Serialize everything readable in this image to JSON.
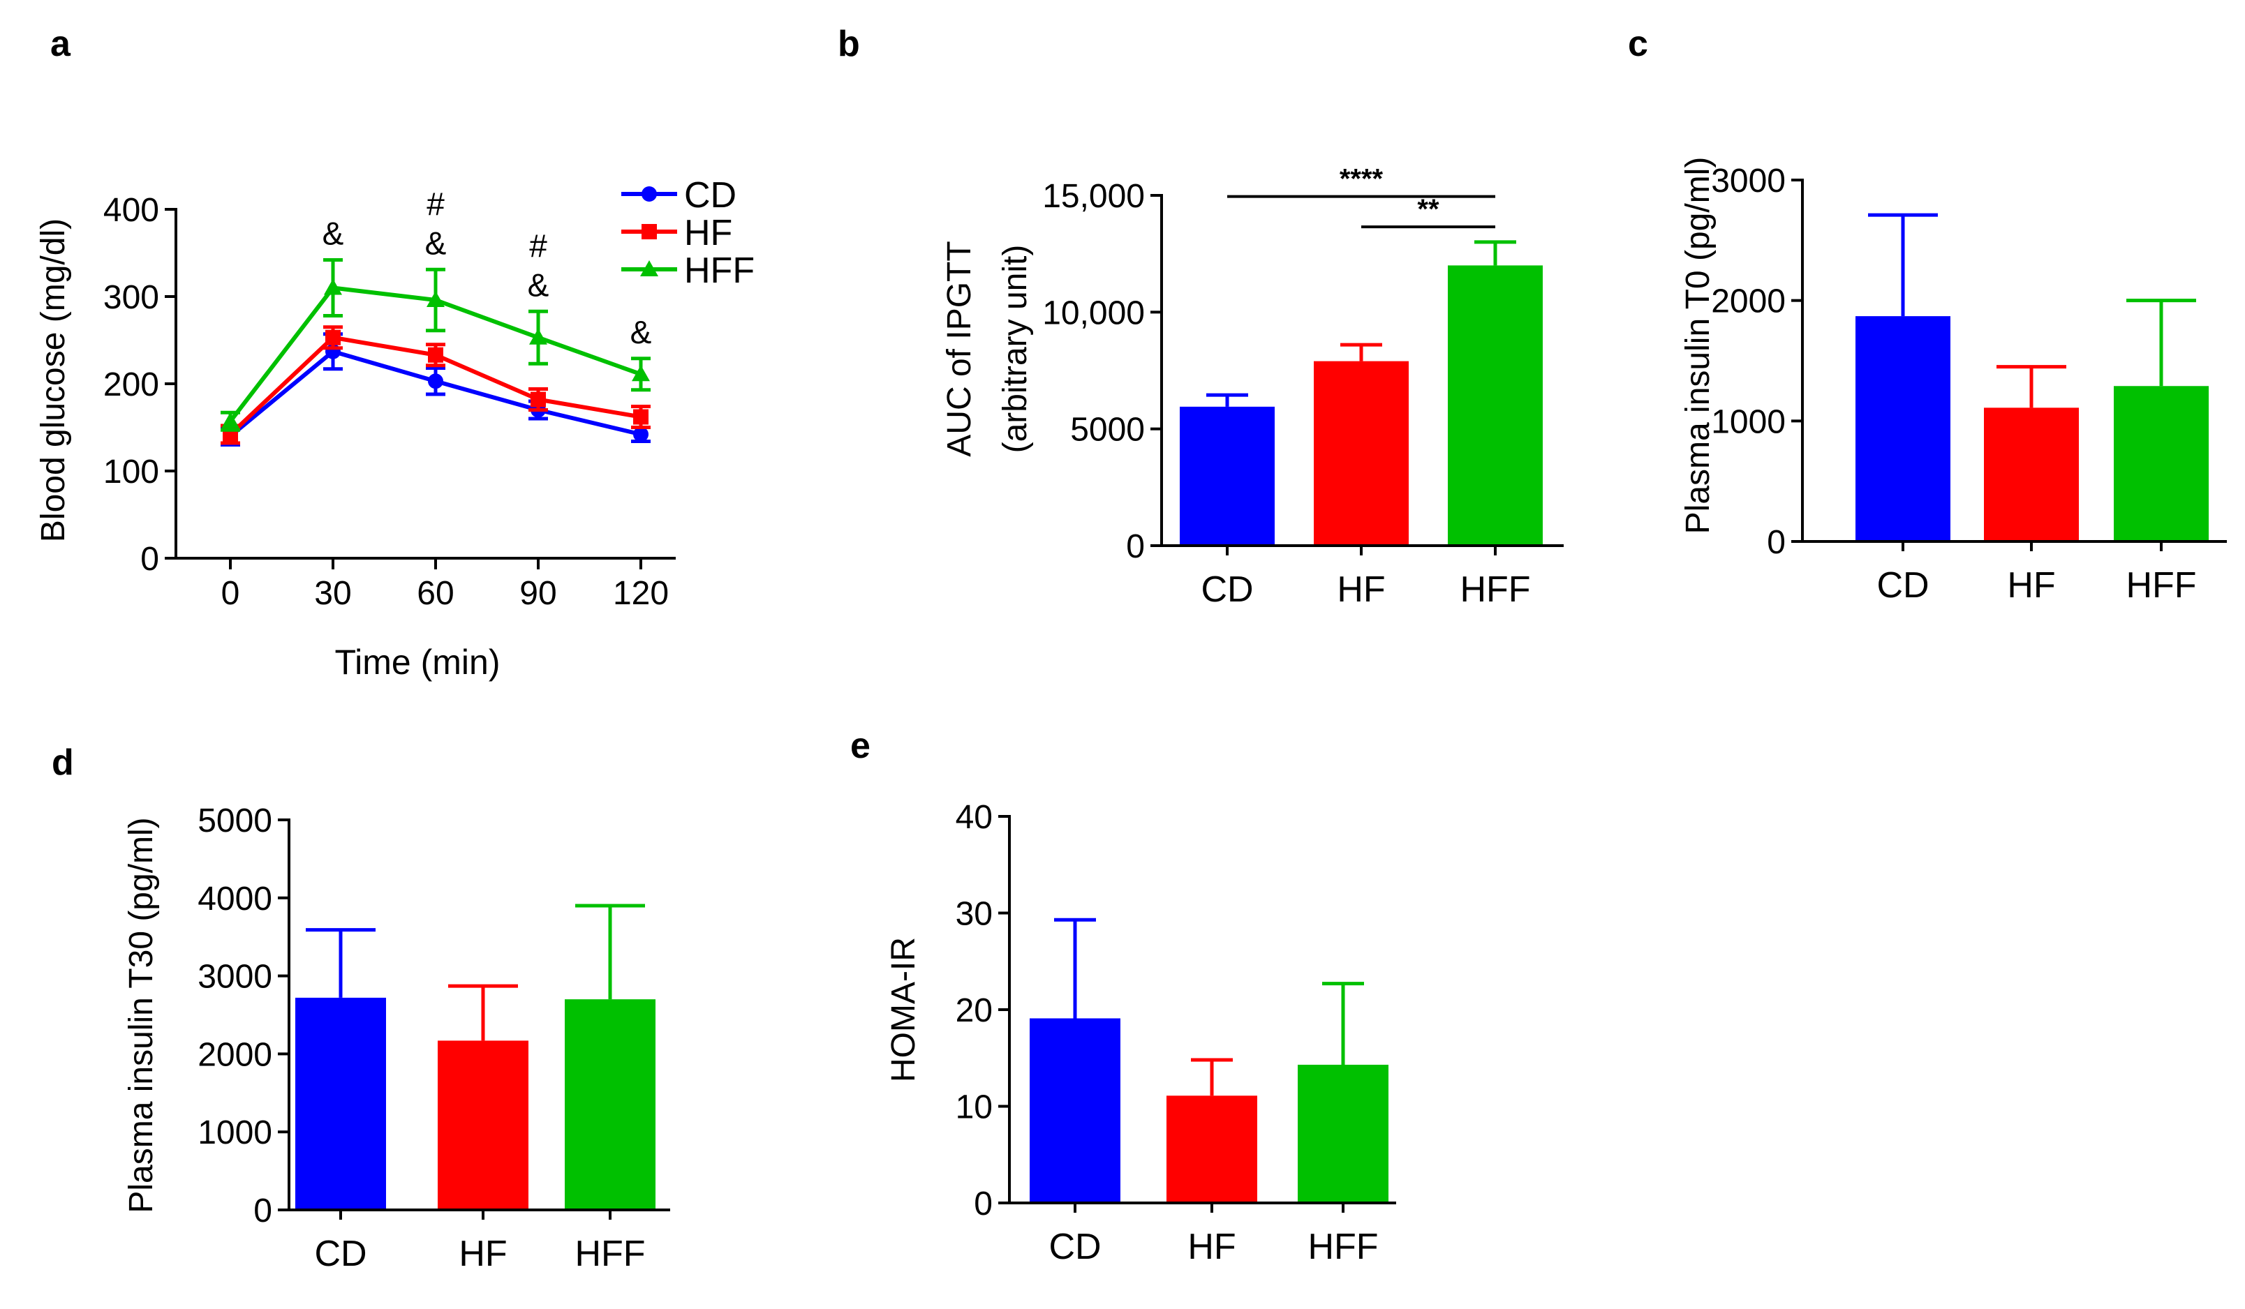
{
  "colors": {
    "CD": "#0000ff",
    "HF": "#ff0000",
    "HFF": "#00c000",
    "axis": "#000000"
  },
  "chart_data": [
    {
      "id": "a",
      "panel_label": "a",
      "type": "line",
      "title": "",
      "xlabel": "Time (min)",
      "ylabel": "Blood glucose (mg/dl)",
      "x": [
        0,
        30,
        60,
        90,
        120
      ],
      "x_ticks": [
        0,
        30,
        60,
        90,
        120
      ],
      "xlim": [
        -15,
        135
      ],
      "ylim": [
        0,
        400
      ],
      "y_ticks": [
        0,
        100,
        200,
        300,
        400
      ],
      "legend_position": "top-right",
      "series": [
        {
          "name": "CD",
          "marker": "circle",
          "values": [
            140,
            237,
            203,
            170,
            142
          ],
          "errors": [
            10,
            20,
            15,
            10,
            8
          ]
        },
        {
          "name": "HF",
          "marker": "square",
          "values": [
            142,
            253,
            233,
            182,
            162
          ],
          "errors": [
            10,
            12,
            12,
            12,
            12
          ]
        },
        {
          "name": "HFF",
          "marker": "triangle",
          "values": [
            157,
            310,
            296,
            253,
            211
          ],
          "errors": [
            10,
            32,
            35,
            30,
            18
          ]
        }
      ],
      "annotations": [
        {
          "x": 30,
          "labels": [
            "&"
          ]
        },
        {
          "x": 60,
          "labels": [
            "#",
            "&"
          ]
        },
        {
          "x": 90,
          "labels": [
            "#",
            "&"
          ]
        },
        {
          "x": 120,
          "labels": [
            "&"
          ]
        }
      ]
    },
    {
      "id": "b",
      "panel_label": "b",
      "type": "bar",
      "title": "",
      "xlabel": "",
      "ylabel": "AUC of IPGTT",
      "ylabel2": "(arbitrary unit)",
      "categories": [
        "CD",
        "HF",
        "HFF"
      ],
      "values": [
        5950,
        7900,
        12000
      ],
      "errors": [
        500,
        700,
        1000
      ],
      "ylim": [
        0,
        15000
      ],
      "y_ticks": [
        0,
        5000,
        10000,
        15000
      ],
      "y_tick_labels": [
        "0",
        "5000",
        "10,000",
        "15,000"
      ],
      "significance": [
        {
          "from": "CD",
          "to": "HFF",
          "label": "****",
          "y": 14950
        },
        {
          "from": "HF",
          "to": "HFF",
          "label": "**",
          "y": 13650
        }
      ]
    },
    {
      "id": "c",
      "panel_label": "c",
      "type": "bar",
      "title": "",
      "xlabel": "",
      "ylabel": "Plasma insulin T0 (pg/ml)",
      "categories": [
        "CD",
        "HF",
        "HFF"
      ],
      "values": [
        1870,
        1110,
        1290
      ],
      "errors": [
        840,
        340,
        710
      ],
      "ylim": [
        0,
        3000
      ],
      "y_ticks": [
        0,
        1000,
        2000,
        3000
      ],
      "y_tick_labels": [
        "0",
        "1000",
        "2000",
        "3000"
      ]
    },
    {
      "id": "d",
      "panel_label": "d",
      "type": "bar",
      "title": "",
      "xlabel": "",
      "ylabel": "Plasma insulin T30 (pg/ml)",
      "categories": [
        "CD",
        "HF",
        "HFF"
      ],
      "values": [
        2720,
        2170,
        2700
      ],
      "errors": [
        870,
        700,
        1200
      ],
      "ylim": [
        0,
        5000
      ],
      "y_ticks": [
        0,
        1000,
        2000,
        3000,
        4000,
        5000
      ],
      "y_tick_labels": [
        "0",
        "1000",
        "2000",
        "3000",
        "4000",
        "5000"
      ]
    },
    {
      "id": "e",
      "panel_label": "e",
      "type": "bar",
      "title": "",
      "xlabel": "",
      "ylabel": "HOMA-IR",
      "categories": [
        "CD",
        "HF",
        "HFF"
      ],
      "values": [
        19.1,
        11.1,
        14.3
      ],
      "errors": [
        10.2,
        3.7,
        8.4
      ],
      "ylim": [
        0,
        40
      ],
      "y_ticks": [
        0,
        10,
        20,
        30,
        40
      ],
      "y_tick_labels": [
        "0",
        "10",
        "20",
        "30",
        "40"
      ]
    }
  ]
}
